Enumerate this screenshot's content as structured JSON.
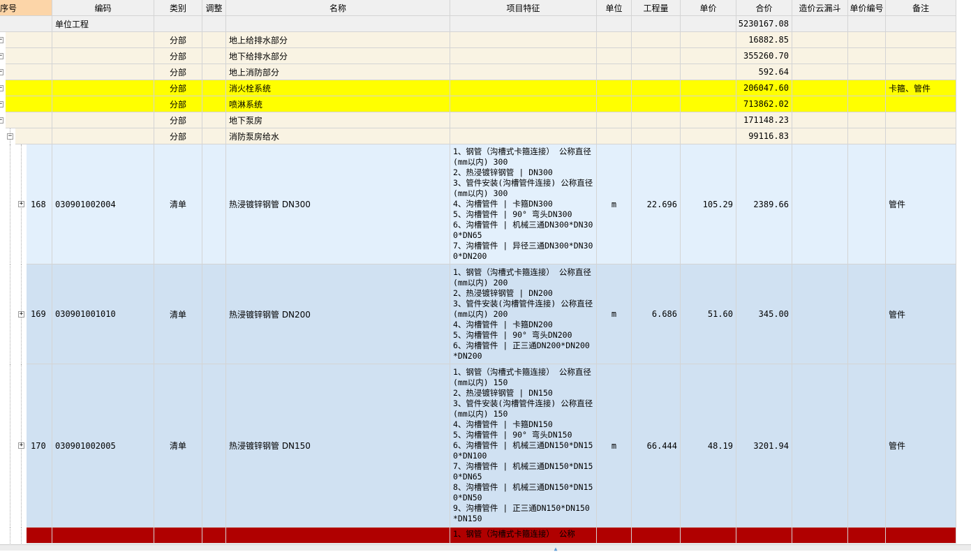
{
  "columns": [
    "序号",
    "编码",
    "类别",
    "调整",
    "名称",
    "项目特征",
    "单位",
    "工程量",
    "单价",
    "合价",
    "造价云漏斗",
    "单价编号",
    "备注"
  ],
  "colors": {
    "header": "#f0f0f0",
    "header_selected": "#fcd5a8",
    "section": "#f9f3e3",
    "highlight": "#ffff00",
    "item_light": "#e3f0fc",
    "item": "#d0e1f2",
    "selected": "#b00000"
  },
  "rows": [
    {
      "kind": "root",
      "code": "单位工程",
      "total": "5230167.08"
    },
    {
      "kind": "section",
      "type": "分部",
      "name": "地上给排水部分",
      "total": "16882.85",
      "expander": "minus"
    },
    {
      "kind": "section",
      "type": "分部",
      "name": "地下给排水部分",
      "total": "355260.70",
      "expander": "minus"
    },
    {
      "kind": "section",
      "type": "分部",
      "name": "地上消防部分",
      "total": "592.64",
      "expander": "minus"
    },
    {
      "kind": "highlight",
      "type": "分部",
      "name": "消火栓系统",
      "total": "206047.60",
      "note": "卡箍、管件",
      "expander": "minus"
    },
    {
      "kind": "highlight",
      "type": "分部",
      "name": "喷淋系统",
      "total": "713862.02",
      "expander": "minus"
    },
    {
      "kind": "section",
      "type": "分部",
      "name": "地下泵房",
      "total": "171148.23",
      "expander": "minus"
    },
    {
      "kind": "subsection",
      "type": "分部",
      "name": "消防泵房给水",
      "total": "99116.83",
      "expander": "minus"
    },
    {
      "kind": "item_light",
      "seq": "168",
      "code": "030901002004",
      "type": "清单",
      "name": "热浸镀锌钢管 DN300",
      "features": [
        "1、钢管（沟槽式卡箍连接） 公称直径(mm以内) 300",
        "2、热浸镀锌钢管 | DN300",
        "3、管件安装(沟槽管件连接) 公称直径(mm以内) 300",
        "4、沟槽管件 | 卡箍DN300",
        "5、沟槽管件 | 90° 弯头DN300",
        "6、沟槽管件 | 机械三通DN300*DN300*DN65",
        "7、沟槽管件 | 异径三通DN300*DN300*DN200"
      ],
      "unit": "m",
      "qty": "22.696",
      "price": "105.29",
      "total": "2389.66",
      "note": "管件",
      "expander": "plus"
    },
    {
      "kind": "item",
      "seq": "169",
      "code": "030901001010",
      "type": "清单",
      "name": "热浸镀锌钢管 DN200",
      "features": [
        "1、钢管（沟槽式卡箍连接） 公称直径(mm以内) 200",
        "2、热浸镀锌钢管 | DN200",
        "3、管件安装(沟槽管件连接) 公称直径(mm以内) 200",
        "4、沟槽管件 | 卡箍DN200",
        "5、沟槽管件 | 90° 弯头DN200",
        "6、沟槽管件 | 正三通DN200*DN200*DN200"
      ],
      "unit": "m",
      "qty": "6.686",
      "price": "51.60",
      "total": "345.00",
      "note": "管件",
      "expander": "plus"
    },
    {
      "kind": "item",
      "seq": "170",
      "code": "030901002005",
      "type": "清单",
      "name": "热浸镀锌钢管 DN150",
      "features": [
        "1、钢管（沟槽式卡箍连接） 公称直径(mm以内) 150",
        "2、热浸镀锌钢管 | DN150",
        "3、管件安装(沟槽管件连接) 公称直径(mm以内) 150",
        "4、沟槽管件 | 卡箍DN150",
        "5、沟槽管件 | 90° 弯头DN150",
        "6、沟槽管件 | 机械三通DN150*DN150*DN100",
        "7、沟槽管件 | 机械三通DN150*DN150*DN65",
        "8、沟槽管件 | 机械三通DN150*DN150*DN50",
        "9、沟槽管件 | 正三通DN150*DN150*DN150"
      ],
      "unit": "m",
      "qty": "66.444",
      "price": "48.19",
      "total": "3201.94",
      "note": "管件",
      "expander": "plus"
    },
    {
      "kind": "selected",
      "features": [
        "1、钢管（沟槽式卡箍连接） 公称"
      ]
    }
  ]
}
